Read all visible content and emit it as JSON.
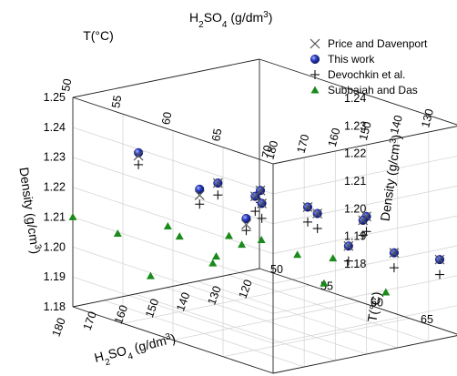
{
  "chart_data": {
    "type": "scatter",
    "subtype": "3d-scatter",
    "title": "",
    "axes": {
      "h2so4": {
        "label_parts": [
          "H",
          "2",
          "SO",
          "4",
          " (g/dm",
          "3",
          ")"
        ],
        "ticks": [
          "180",
          "170",
          "160",
          "150",
          "140",
          "130",
          "120"
        ],
        "ticks_visible_top": [
          "180",
          "170",
          "160",
          "150",
          "140",
          "130"
        ],
        "ticks_visible_bottom": [
          "180",
          "170",
          "160",
          "150",
          "140",
          "130",
          "120"
        ],
        "range": [
          120,
          180
        ]
      },
      "temperature": {
        "label": "T(°C)",
        "ticks": [
          "50",
          "55",
          "60",
          "65",
          "70"
        ],
        "range": [
          50,
          70
        ]
      },
      "density_left": {
        "label_parts": [
          "Density (g/cm",
          "3",
          ")"
        ],
        "ticks": [
          "1.18",
          "1.19",
          "1.20",
          "1.21",
          "1.22",
          "1.23",
          "1.24",
          "1.25"
        ],
        "range": [
          1.18,
          1.25
        ]
      },
      "density_right": {
        "label_parts": [
          "Density (g/cm",
          "3",
          ")"
        ],
        "ticks": [
          "1.18",
          "1.19",
          "1.20",
          "1.21",
          "1.22",
          "1.23",
          "1.24"
        ]
      }
    },
    "legend": {
      "placement": "top-right",
      "entries": [
        {
          "label": "Price and Davenport",
          "marker": "x",
          "color": "#555555"
        },
        {
          "label": "This work",
          "marker": "sphere",
          "color": "#1f2f9f"
        },
        {
          "label": "Devochkin et al.",
          "marker": "plus",
          "color": "#111111"
        },
        {
          "label": "Subbaiah and Das",
          "marker": "triangle",
          "color": "#1a8a1a"
        }
      ]
    },
    "series": [
      {
        "name": "Price and Davenport",
        "points": [
          {
            "h2so4": 175,
            "t": 55,
            "density": 1.235
          },
          {
            "h2so4": 165,
            "t": 58,
            "density": 1.223
          },
          {
            "h2so4": 172,
            "t": 62,
            "density": 1.233
          },
          {
            "h2so4": 168,
            "t": 65,
            "density": 1.233
          },
          {
            "h2so4": 160,
            "t": 62,
            "density": 1.226
          },
          {
            "h2so4": 156,
            "t": 66,
            "density": 1.226
          },
          {
            "h2so4": 150,
            "t": 70,
            "density": 1.226
          },
          {
            "h2so4": 150,
            "t": 58,
            "density": 1.21
          },
          {
            "h2so4": 145,
            "t": 58,
            "density": 1.216
          },
          {
            "h2so4": 140,
            "t": 62,
            "density": 1.216
          },
          {
            "h2so4": 135,
            "t": 65,
            "density": 1.216
          },
          {
            "h2so4": 130,
            "t": 62,
            "density": 1.203
          },
          {
            "h2so4": 125,
            "t": 65,
            "density": 1.203
          },
          {
            "h2so4": 120,
            "t": 68,
            "density": 1.203
          }
        ]
      },
      {
        "name": "This work",
        "points": [
          {
            "h2so4": 175,
            "t": 55,
            "density": 1.236
          },
          {
            "h2so4": 165,
            "t": 58,
            "density": 1.225
          },
          {
            "h2so4": 172,
            "t": 62,
            "density": 1.233
          },
          {
            "h2so4": 168,
            "t": 65,
            "density": 1.233
          },
          {
            "h2so4": 160,
            "t": 62,
            "density": 1.226
          },
          {
            "h2so4": 156,
            "t": 66,
            "density": 1.226
          },
          {
            "h2so4": 150,
            "t": 70,
            "density": 1.226
          },
          {
            "h2so4": 150,
            "t": 58,
            "density": 1.212
          },
          {
            "h2so4": 145,
            "t": 58,
            "density": 1.216
          },
          {
            "h2so4": 140,
            "t": 62,
            "density": 1.216
          },
          {
            "h2so4": 135,
            "t": 65,
            "density": 1.216
          },
          {
            "h2so4": 130,
            "t": 62,
            "density": 1.203
          },
          {
            "h2so4": 125,
            "t": 65,
            "density": 1.203
          },
          {
            "h2so4": 120,
            "t": 68,
            "density": 1.203
          }
        ]
      },
      {
        "name": "Devochkin et al.",
        "points": [
          {
            "h2so4": 175,
            "t": 55,
            "density": 1.232
          },
          {
            "h2so4": 165,
            "t": 58,
            "density": 1.22
          },
          {
            "h2so4": 172,
            "t": 62,
            "density": 1.229
          },
          {
            "h2so4": 168,
            "t": 65,
            "density": 1.229
          },
          {
            "h2so4": 160,
            "t": 62,
            "density": 1.221
          },
          {
            "h2so4": 156,
            "t": 66,
            "density": 1.221
          },
          {
            "h2so4": 150,
            "t": 70,
            "density": 1.221
          },
          {
            "h2so4": 150,
            "t": 58,
            "density": 1.208
          },
          {
            "h2so4": 145,
            "t": 58,
            "density": 1.211
          },
          {
            "h2so4": 140,
            "t": 62,
            "density": 1.211
          },
          {
            "h2so4": 135,
            "t": 65,
            "density": 1.211
          },
          {
            "h2so4": 130,
            "t": 62,
            "density": 1.198
          },
          {
            "h2so4": 125,
            "t": 65,
            "density": 1.198
          },
          {
            "h2so4": 120,
            "t": 68,
            "density": 1.198
          }
        ]
      },
      {
        "name": "Subbaiah and Das",
        "points": [
          {
            "h2so4": 180,
            "t": 50,
            "density": 1.21
          },
          {
            "h2so4": 172,
            "t": 52,
            "density": 1.205
          },
          {
            "h2so4": 172,
            "t": 57,
            "density": 1.213
          },
          {
            "h2so4": 165,
            "t": 56,
            "density": 1.207
          },
          {
            "h2so4": 162,
            "t": 60,
            "density": 1.211
          },
          {
            "h2so4": 158,
            "t": 62,
            "density": 1.211
          },
          {
            "h2so4": 150,
            "t": 55,
            "density": 1.196
          },
          {
            "h2so4": 145,
            "t": 56,
            "density": 1.2
          },
          {
            "h2so4": 140,
            "t": 60,
            "density": 1.2
          },
          {
            "h2so4": 135,
            "t": 62,
            "density": 1.2
          },
          {
            "h2so4": 155,
            "t": 50,
            "density": 1.185
          },
          {
            "h2so4": 135,
            "t": 50,
            "density": 1.185
          },
          {
            "h2so4": 125,
            "t": 58,
            "density": 1.185
          },
          {
            "h2so4": 118,
            "t": 62,
            "density": 1.185
          }
        ]
      }
    ]
  }
}
